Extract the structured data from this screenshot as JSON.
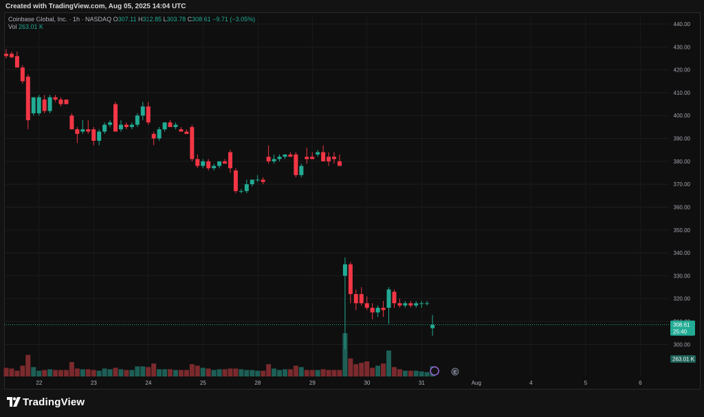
{
  "header": {
    "created": "Created with TradingView.com, Aug 05, 2025 14:04 UTC"
  },
  "legend": {
    "symbol": "Coinbase Global, Inc. · 1h · NASDAQ",
    "o_label": "O",
    "o_value": "307.11",
    "h_label": "H",
    "h_value": "312.85",
    "l_label": "L",
    "l_value": "303.78",
    "c_label": "C",
    "c_value": "308.61",
    "change": "−9.71 (−3.05%)",
    "vol_label": "Vol",
    "vol_value": "263.01 K"
  },
  "footer": {
    "brand": "TradingView"
  },
  "colors": {
    "up": "#22ab94",
    "down": "#f23645",
    "up_vol": "#1d5f56",
    "down_vol": "#7a2a2d"
  },
  "chart_data": {
    "type": "candlestick",
    "y_ticks": [
      "440.00",
      "430.00",
      "420.00",
      "410.00",
      "400.00",
      "390.00",
      "380.00",
      "370.00",
      "360.00",
      "350.00",
      "340.00",
      "330.00",
      "320.00",
      "310.00",
      "300.00"
    ],
    "ylim": [
      295,
      440
    ],
    "x_labels": [
      {
        "label": "22",
        "i": 3
      },
      {
        "label": "23",
        "i": 13
      },
      {
        "label": "24",
        "i": 23
      },
      {
        "label": "25",
        "i": 33
      },
      {
        "label": "28",
        "i": 43
      },
      {
        "label": "29",
        "i": 53
      },
      {
        "label": "30",
        "i": 63
      },
      {
        "label": "31",
        "i": 73
      },
      {
        "label": "Aug",
        "i": 83
      },
      {
        "label": "4",
        "i": 93
      },
      {
        "label": "5",
        "i": 103
      },
      {
        "label": "6",
        "i": 113
      }
    ],
    "price_label": "308.61",
    "countdown_label": "25:40",
    "volume_label": "263.01 K",
    "candles": [
      [
        427,
        429,
        425,
        426
      ],
      [
        427,
        428,
        425,
        425.5
      ],
      [
        426,
        428,
        421,
        421
      ],
      [
        421,
        422,
        414,
        415
      ],
      [
        417,
        418,
        394,
        398
      ],
      [
        401,
        407,
        400,
        408
      ],
      [
        401,
        409,
        400,
        408
      ],
      [
        407,
        409,
        401,
        402
      ],
      [
        402,
        409,
        401,
        408
      ],
      [
        408,
        409,
        406,
        407
      ],
      [
        407,
        408,
        404,
        405
      ],
      [
        407,
        407,
        405,
        405
      ],
      [
        400,
        401,
        394,
        394
      ],
      [
        394,
        395,
        388,
        392
      ],
      [
        393,
        398,
        392,
        394
      ],
      [
        394,
        398,
        392,
        393
      ],
      [
        394,
        395,
        387,
        389
      ],
      [
        389,
        394,
        387,
        393
      ],
      [
        393,
        397,
        392,
        396
      ],
      [
        396,
        398,
        395,
        397
      ],
      [
        405,
        406,
        393,
        393
      ],
      [
        394,
        398,
        393,
        396
      ],
      [
        396,
        397,
        394,
        395
      ],
      [
        395,
        397,
        394,
        396
      ],
      [
        396,
        401,
        395,
        400
      ],
      [
        400,
        406,
        398,
        404
      ],
      [
        404,
        406,
        396,
        397
      ],
      [
        392,
        393,
        387,
        390
      ],
      [
        390,
        395,
        389,
        394
      ],
      [
        394,
        397,
        393,
        397
      ],
      [
        397,
        398,
        395,
        395
      ],
      [
        395,
        397,
        394,
        396
      ],
      [
        394,
        395,
        393,
        393
      ],
      [
        393,
        394,
        392,
        392
      ],
      [
        395,
        396,
        380,
        381
      ],
      [
        381,
        383,
        377,
        378
      ],
      [
        378,
        381,
        377,
        380
      ],
      [
        380,
        381,
        376,
        377
      ],
      [
        377,
        379,
        376,
        378
      ],
      [
        378,
        380,
        377,
        380
      ],
      [
        380,
        381,
        379,
        379
      ],
      [
        384,
        385,
        375,
        377
      ],
      [
        376,
        377,
        366,
        367
      ],
      [
        367,
        368,
        366,
        367
      ],
      [
        367,
        372,
        366,
        370
      ],
      [
        370,
        372,
        369,
        372
      ],
      [
        372,
        374,
        371,
        372
      ],
      [
        372,
        373,
        370,
        371
      ],
      [
        382,
        387,
        379,
        380
      ],
      [
        380,
        383,
        379,
        381
      ],
      [
        381,
        383,
        380,
        382
      ],
      [
        382,
        383,
        381,
        383
      ],
      [
        383,
        384,
        382,
        382
      ],
      [
        383,
        384,
        373,
        374
      ],
      [
        374,
        379,
        373,
        378
      ],
      [
        382,
        386,
        379,
        381
      ],
      [
        382,
        384,
        381,
        381
      ],
      [
        383,
        385,
        382,
        384
      ],
      [
        384,
        387,
        380,
        380
      ],
      [
        382,
        384,
        378,
        380
      ],
      [
        382,
        384,
        379,
        381
      ],
      [
        380,
        383,
        378,
        378
      ],
      [
        330,
        338,
        298,
        335
      ],
      [
        335,
        336,
        318,
        322
      ],
      [
        322,
        324,
        315,
        318
      ],
      [
        322,
        325,
        317,
        318
      ],
      [
        318,
        321,
        315,
        316
      ],
      [
        316,
        318,
        311,
        314
      ],
      [
        314,
        317,
        312,
        316
      ],
      [
        316,
        319,
        312,
        315
      ],
      [
        316,
        325,
        309,
        324
      ],
      [
        323,
        324,
        316,
        318
      ],
      [
        318,
        320,
        316,
        317
      ],
      [
        317,
        319,
        316,
        318
      ],
      [
        318,
        319,
        316,
        317
      ],
      [
        317,
        319,
        316,
        318
      ],
      [
        318,
        319,
        316,
        318
      ],
      [
        318,
        319,
        317,
        318
      ],
      [
        307.11,
        312.85,
        303.78,
        308.61
      ]
    ],
    "volumes": [
      12,
      11,
      8,
      15,
      30,
      13,
      8,
      9,
      10,
      9,
      9,
      9,
      20,
      11,
      10,
      10,
      9,
      8,
      11,
      10,
      12,
      10,
      9,
      9,
      14,
      14,
      13,
      18,
      10,
      10,
      10,
      9,
      9,
      9,
      17,
      15,
      12,
      11,
      9,
      10,
      10,
      11,
      11,
      10,
      9,
      9,
      8,
      8,
      17,
      11,
      9,
      10,
      10,
      15,
      13,
      9,
      9,
      9,
      10,
      9,
      9,
      9,
      60,
      25,
      17,
      19,
      21,
      12,
      15,
      18,
      36,
      13,
      10,
      8,
      8,
      8,
      7,
      6,
      14
    ]
  }
}
